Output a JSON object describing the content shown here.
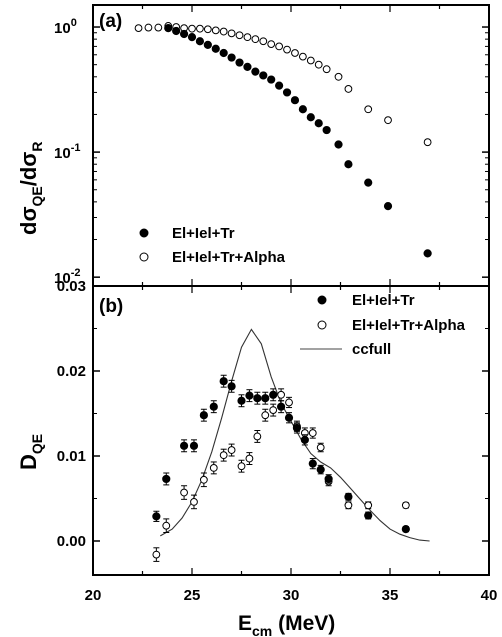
{
  "chart_data": [
    {
      "type": "scatter",
      "panel_label": "(a)",
      "ylabel": {
        "main": "dσ",
        "sub1": "QE",
        "sep": "/dσ",
        "sub2": "R"
      },
      "yscale": "log",
      "ylim": [
        0.0085,
        1.5
      ],
      "xlim": [
        20,
        40
      ],
      "yticks": [
        {
          "value": 1.0,
          "mant": "10",
          "exp": "0"
        },
        {
          "value": 0.1,
          "mant": "10",
          "exp": "-1"
        },
        {
          "value": 0.01,
          "mant": "10",
          "exp": "-2"
        }
      ],
      "legend_position": "lower-left",
      "series": [
        {
          "name": "El+Iel+Tr",
          "marker": "filled-circle",
          "x": [
            23.8,
            24.2,
            24.6,
            25.0,
            25.4,
            25.8,
            26.2,
            26.6,
            27.0,
            27.4,
            27.8,
            28.2,
            28.6,
            29.0,
            29.4,
            29.8,
            30.2,
            30.6,
            31.0,
            31.4,
            31.8,
            32.4,
            32.9,
            33.9,
            34.9,
            36.9
          ],
          "y": [
            0.98,
            0.93,
            0.88,
            0.83,
            0.77,
            0.72,
            0.67,
            0.62,
            0.57,
            0.52,
            0.48,
            0.44,
            0.41,
            0.38,
            0.34,
            0.3,
            0.26,
            0.22,
            0.19,
            0.17,
            0.15,
            0.115,
            0.08,
            0.057,
            0.037,
            0.0155
          ]
        },
        {
          "name": "El+Iel+Tr+Alpha",
          "marker": "open-circle",
          "x": [
            22.3,
            22.8,
            23.3,
            23.8,
            24.2,
            24.6,
            25.0,
            25.4,
            25.8,
            26.2,
            26.6,
            27.0,
            27.4,
            27.8,
            28.2,
            28.6,
            29.0,
            29.4,
            29.8,
            30.2,
            30.6,
            31.0,
            31.4,
            31.8,
            32.4,
            32.9,
            33.9,
            34.9,
            36.9
          ],
          "y": [
            0.98,
            0.99,
            0.99,
            1.02,
            1.0,
            0.98,
            0.97,
            0.97,
            0.96,
            0.94,
            0.92,
            0.89,
            0.86,
            0.83,
            0.8,
            0.77,
            0.73,
            0.7,
            0.66,
            0.62,
            0.58,
            0.54,
            0.5,
            0.46,
            0.4,
            0.32,
            0.22,
            0.18,
            0.12
          ]
        }
      ]
    },
    {
      "type": "scatter",
      "panel_label": "(b)",
      "ylabel": {
        "main": "D",
        "sub1": "QE"
      },
      "ylim": [
        -0.004,
        0.03
      ],
      "xlim": [
        20,
        40
      ],
      "yticks": [
        {
          "value": 0.0,
          "label": "0.00"
        },
        {
          "value": 0.01,
          "label": "0.01"
        },
        {
          "value": 0.02,
          "label": "0.02"
        },
        {
          "value": 0.03,
          "label": "0.03"
        }
      ],
      "xticks": [
        {
          "value": 20,
          "label": "20"
        },
        {
          "value": 25,
          "label": "25"
        },
        {
          "value": 30,
          "label": "30"
        },
        {
          "value": 35,
          "label": "35"
        },
        {
          "value": 40,
          "label": "40"
        }
      ],
      "xlabel": {
        "main": "E",
        "sub": "cm",
        "unit": " (MeV)"
      },
      "legend_position": "top-right",
      "series": [
        {
          "name": "El+Iel+Tr",
          "marker": "filled-circle",
          "x": [
            23.2,
            23.7,
            24.6,
            25.1,
            25.6,
            26.1,
            26.6,
            27.0,
            27.5,
            27.9,
            28.3,
            28.7,
            29.1,
            29.5,
            29.9,
            30.3,
            30.7,
            31.1,
            31.5,
            31.9,
            32.9,
            33.9,
            35.8
          ],
          "y": [
            0.0029,
            0.0073,
            0.0112,
            0.0112,
            0.0148,
            0.0158,
            0.0188,
            0.0182,
            0.0165,
            0.0171,
            0.0168,
            0.0168,
            0.0172,
            0.0158,
            0.0145,
            0.0133,
            0.0119,
            0.0091,
            0.0084,
            0.0073,
            0.0052,
            0.003,
            0.0014
          ],
          "err": [
            0.0006,
            0.0007,
            0.0007,
            0.0007,
            0.0007,
            0.0007,
            0.0007,
            0.0007,
            0.0007,
            0.0007,
            0.0007,
            0.0007,
            0.0007,
            0.0007,
            0.0006,
            0.0006,
            0.0006,
            0.0006,
            0.0005,
            0.0005,
            0.0004,
            0.0004,
            0.0003
          ]
        },
        {
          "name": "El+Iel+Tr+Alpha",
          "marker": "open-circle",
          "x": [
            23.2,
            23.7,
            24.6,
            25.1,
            25.6,
            26.1,
            26.6,
            27.0,
            27.5,
            27.9,
            28.3,
            28.7,
            29.1,
            29.5,
            29.9,
            30.3,
            30.7,
            31.1,
            31.5,
            31.9,
            32.9,
            33.9,
            35.8
          ],
          "y": [
            -0.0016,
            0.0018,
            0.0057,
            0.0046,
            0.0072,
            0.0086,
            0.0101,
            0.0107,
            0.0088,
            0.0097,
            0.0123,
            0.0148,
            0.0154,
            0.0172,
            0.0163,
            0.0135,
            0.0127,
            0.0127,
            0.011,
            0.007,
            0.0042,
            0.0042,
            0.0042
          ],
          "err": [
            0.0008,
            0.0008,
            0.0008,
            0.0008,
            0.0008,
            0.0007,
            0.0007,
            0.0007,
            0.0007,
            0.0007,
            0.0007,
            0.0007,
            0.0007,
            0.0007,
            0.0006,
            0.0006,
            0.0006,
            0.0006,
            0.0005,
            0.0005,
            0.0004,
            0.0004,
            0.0003
          ]
        },
        {
          "name": "ccfull",
          "marker": "line",
          "x": [
            23.4,
            24.0,
            24.5,
            25.0,
            25.5,
            26.0,
            26.5,
            27.0,
            27.5,
            28.0,
            28.5,
            29.0,
            29.5,
            30.0,
            30.5,
            31.0,
            31.5,
            32.0,
            32.5,
            33.0,
            33.5,
            34.0,
            34.5,
            35.0,
            35.5,
            36.0,
            36.5,
            37.0
          ],
          "y": [
            0.0006,
            0.0014,
            0.0027,
            0.0046,
            0.0072,
            0.0105,
            0.0145,
            0.0188,
            0.0228,
            0.0249,
            0.0232,
            0.0193,
            0.0162,
            0.0141,
            0.012,
            0.0103,
            0.0093,
            0.0086,
            0.0075,
            0.0062,
            0.0049,
            0.0036,
            0.0024,
            0.0014,
            0.0008,
            0.0004,
            0.0001,
            0.0
          ]
        }
      ]
    }
  ]
}
